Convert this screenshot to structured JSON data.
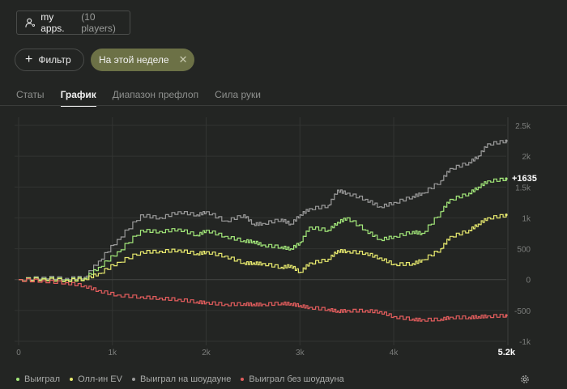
{
  "players": {
    "app_label": "my apps.",
    "count_label": "(10 players)"
  },
  "filters": {
    "filter_label": "Фильтр",
    "active_chip": "На этой неделе"
  },
  "tabs": [
    {
      "label": "Статы",
      "active": false
    },
    {
      "label": "График",
      "active": true
    },
    {
      "label": "Диапазон префлоп",
      "active": false
    },
    {
      "label": "Сила руки",
      "active": false
    }
  ],
  "chart_data": {
    "type": "line",
    "final_label": "+1635",
    "x_max_label": "5.2k",
    "xlim": [
      0,
      5200
    ],
    "ylim": [
      -1000,
      2500
    ],
    "x_ticks": [
      {
        "v": 0,
        "label": "0"
      },
      {
        "v": 1000,
        "label": "1k"
      },
      {
        "v": 2000,
        "label": "2k"
      },
      {
        "v": 3000,
        "label": "3k"
      },
      {
        "v": 4000,
        "label": "4k"
      }
    ],
    "y_ticks": [
      {
        "v": 2500,
        "label": "2.5k"
      },
      {
        "v": 2000,
        "label": "2k"
      },
      {
        "v": 1500,
        "label": "1.5k"
      },
      {
        "v": 1000,
        "label": "1k"
      },
      {
        "v": 500,
        "label": "500"
      },
      {
        "v": 0,
        "label": "0"
      },
      {
        "v": -500,
        "label": "-500"
      },
      {
        "v": -1000,
        "label": "-1k"
      }
    ],
    "grid": true,
    "legend_position": "bottom-left",
    "series": [
      {
        "name": "Выиграл на шоудауне",
        "color": "#9a9a9a",
        "x": [
          0,
          250,
          500,
          700,
          850,
          1050,
          1300,
          1500,
          1700,
          1900,
          2000,
          2200,
          2400,
          2500,
          2600,
          2800,
          2900,
          3000,
          3100,
          3300,
          3400,
          3500,
          3700,
          3850,
          4000,
          4200,
          4300,
          4500,
          4600,
          4800,
          4900,
          5000,
          5200
        ],
        "y": [
          0,
          40,
          20,
          40,
          300,
          650,
          1050,
          1000,
          1100,
          1050,
          1100,
          950,
          1050,
          900,
          910,
          980,
          900,
          1050,
          1150,
          1200,
          1450,
          1400,
          1300,
          1180,
          1250,
          1350,
          1400,
          1600,
          1800,
          1900,
          2000,
          2200,
          2250
        ]
      },
      {
        "name": "Выиграл",
        "color": "#a3e87a",
        "x": [
          0,
          250,
          500,
          700,
          850,
          1050,
          1300,
          1500,
          1700,
          1900,
          2000,
          2200,
          2400,
          2500,
          2600,
          2800,
          2900,
          3000,
          3100,
          3300,
          3400,
          3500,
          3700,
          3850,
          4000,
          4200,
          4300,
          4500,
          4600,
          4800,
          4900,
          5000,
          5200
        ],
        "y": [
          0,
          20,
          0,
          20,
          200,
          450,
          800,
          780,
          820,
          720,
          800,
          700,
          630,
          620,
          560,
          530,
          500,
          600,
          850,
          800,
          930,
          1000,
          800,
          650,
          700,
          780,
          750,
          1100,
          1300,
          1400,
          1500,
          1600,
          1635
        ]
      },
      {
        "name": "Олл-ин EV",
        "color": "#e8ea6e",
        "x": [
          0,
          250,
          500,
          700,
          850,
          1050,
          1300,
          1500,
          1700,
          1900,
          2000,
          2200,
          2400,
          2500,
          2600,
          2800,
          2900,
          3000,
          3100,
          3300,
          3400,
          3500,
          3700,
          3850,
          4000,
          4200,
          4300,
          4500,
          4600,
          4800,
          4900,
          5000,
          5200
        ],
        "y": [
          0,
          10,
          -10,
          10,
          100,
          280,
          450,
          460,
          480,
          420,
          450,
          380,
          270,
          270,
          260,
          200,
          230,
          120,
          270,
          330,
          470,
          460,
          430,
          350,
          250,
          260,
          320,
          500,
          700,
          800,
          900,
          1000,
          1050
        ]
      },
      {
        "name": "Выиграл без шоудауна",
        "color": "#e35d5d",
        "x": [
          0,
          250,
          500,
          700,
          850,
          1050,
          1300,
          1500,
          1700,
          1900,
          2000,
          2200,
          2400,
          2500,
          2600,
          2800,
          2900,
          3000,
          3100,
          3300,
          3400,
          3500,
          3700,
          3850,
          4000,
          4200,
          4300,
          4500,
          4600,
          4800,
          4900,
          5000,
          5200
        ],
        "y": [
          0,
          -20,
          -50,
          -100,
          -180,
          -250,
          -280,
          -300,
          -320,
          -360,
          -370,
          -400,
          -390,
          -400,
          -400,
          -380,
          -390,
          -420,
          -450,
          -480,
          -510,
          -500,
          -500,
          -520,
          -600,
          -640,
          -650,
          -640,
          -610,
          -610,
          -600,
          -590,
          -580
        ]
      }
    ]
  },
  "legend": [
    {
      "label": "Выиграл",
      "color": "#a3e87a"
    },
    {
      "label": "Олл-ин EV",
      "color": "#e8ea6e"
    },
    {
      "label": "Выиграл на шоудауне",
      "color": "#9a9a9a"
    },
    {
      "label": "Выиграл без шоудауна",
      "color": "#e35d5d"
    }
  ]
}
